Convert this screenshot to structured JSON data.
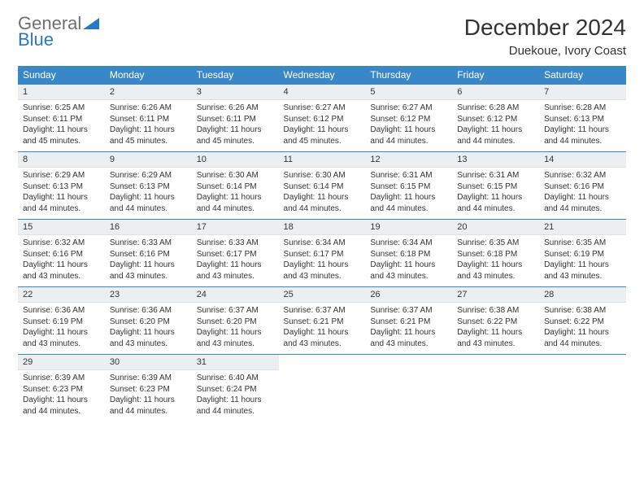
{
  "logo": {
    "word1": "General",
    "word2": "Blue"
  },
  "title": "December 2024",
  "subtitle": "Duekoue, Ivory Coast",
  "colors": {
    "header_bg": "#3a87c8",
    "header_text": "#ffffff",
    "daynum_bg": "#eceff1",
    "border": "#3a87c8",
    "logo_gray": "#6f6f6f",
    "logo_blue": "#2a78c2",
    "page_bg": "#ffffff"
  },
  "typography": {
    "title_fontsize": 28,
    "subtitle_fontsize": 15,
    "weekday_fontsize": 12,
    "daynum_fontsize": 11,
    "body_fontsize": 10
  },
  "weekdays": [
    "Sunday",
    "Monday",
    "Tuesday",
    "Wednesday",
    "Thursday",
    "Friday",
    "Saturday"
  ],
  "days": [
    {
      "n": 1,
      "sunrise": "6:25 AM",
      "sunset": "6:11 PM",
      "daylight": "11 hours and 45 minutes."
    },
    {
      "n": 2,
      "sunrise": "6:26 AM",
      "sunset": "6:11 PM",
      "daylight": "11 hours and 45 minutes."
    },
    {
      "n": 3,
      "sunrise": "6:26 AM",
      "sunset": "6:11 PM",
      "daylight": "11 hours and 45 minutes."
    },
    {
      "n": 4,
      "sunrise": "6:27 AM",
      "sunset": "6:12 PM",
      "daylight": "11 hours and 45 minutes."
    },
    {
      "n": 5,
      "sunrise": "6:27 AM",
      "sunset": "6:12 PM",
      "daylight": "11 hours and 44 minutes."
    },
    {
      "n": 6,
      "sunrise": "6:28 AM",
      "sunset": "6:12 PM",
      "daylight": "11 hours and 44 minutes."
    },
    {
      "n": 7,
      "sunrise": "6:28 AM",
      "sunset": "6:13 PM",
      "daylight": "11 hours and 44 minutes."
    },
    {
      "n": 8,
      "sunrise": "6:29 AM",
      "sunset": "6:13 PM",
      "daylight": "11 hours and 44 minutes."
    },
    {
      "n": 9,
      "sunrise": "6:29 AM",
      "sunset": "6:13 PM",
      "daylight": "11 hours and 44 minutes."
    },
    {
      "n": 10,
      "sunrise": "6:30 AM",
      "sunset": "6:14 PM",
      "daylight": "11 hours and 44 minutes."
    },
    {
      "n": 11,
      "sunrise": "6:30 AM",
      "sunset": "6:14 PM",
      "daylight": "11 hours and 44 minutes."
    },
    {
      "n": 12,
      "sunrise": "6:31 AM",
      "sunset": "6:15 PM",
      "daylight": "11 hours and 44 minutes."
    },
    {
      "n": 13,
      "sunrise": "6:31 AM",
      "sunset": "6:15 PM",
      "daylight": "11 hours and 44 minutes."
    },
    {
      "n": 14,
      "sunrise": "6:32 AM",
      "sunset": "6:16 PM",
      "daylight": "11 hours and 44 minutes."
    },
    {
      "n": 15,
      "sunrise": "6:32 AM",
      "sunset": "6:16 PM",
      "daylight": "11 hours and 43 minutes."
    },
    {
      "n": 16,
      "sunrise": "6:33 AM",
      "sunset": "6:16 PM",
      "daylight": "11 hours and 43 minutes."
    },
    {
      "n": 17,
      "sunrise": "6:33 AM",
      "sunset": "6:17 PM",
      "daylight": "11 hours and 43 minutes."
    },
    {
      "n": 18,
      "sunrise": "6:34 AM",
      "sunset": "6:17 PM",
      "daylight": "11 hours and 43 minutes."
    },
    {
      "n": 19,
      "sunrise": "6:34 AM",
      "sunset": "6:18 PM",
      "daylight": "11 hours and 43 minutes."
    },
    {
      "n": 20,
      "sunrise": "6:35 AM",
      "sunset": "6:18 PM",
      "daylight": "11 hours and 43 minutes."
    },
    {
      "n": 21,
      "sunrise": "6:35 AM",
      "sunset": "6:19 PM",
      "daylight": "11 hours and 43 minutes."
    },
    {
      "n": 22,
      "sunrise": "6:36 AM",
      "sunset": "6:19 PM",
      "daylight": "11 hours and 43 minutes."
    },
    {
      "n": 23,
      "sunrise": "6:36 AM",
      "sunset": "6:20 PM",
      "daylight": "11 hours and 43 minutes."
    },
    {
      "n": 24,
      "sunrise": "6:37 AM",
      "sunset": "6:20 PM",
      "daylight": "11 hours and 43 minutes."
    },
    {
      "n": 25,
      "sunrise": "6:37 AM",
      "sunset": "6:21 PM",
      "daylight": "11 hours and 43 minutes."
    },
    {
      "n": 26,
      "sunrise": "6:37 AM",
      "sunset": "6:21 PM",
      "daylight": "11 hours and 43 minutes."
    },
    {
      "n": 27,
      "sunrise": "6:38 AM",
      "sunset": "6:22 PM",
      "daylight": "11 hours and 43 minutes."
    },
    {
      "n": 28,
      "sunrise": "6:38 AM",
      "sunset": "6:22 PM",
      "daylight": "11 hours and 44 minutes."
    },
    {
      "n": 29,
      "sunrise": "6:39 AM",
      "sunset": "6:23 PM",
      "daylight": "11 hours and 44 minutes."
    },
    {
      "n": 30,
      "sunrise": "6:39 AM",
      "sunset": "6:23 PM",
      "daylight": "11 hours and 44 minutes."
    },
    {
      "n": 31,
      "sunrise": "6:40 AM",
      "sunset": "6:24 PM",
      "daylight": "11 hours and 44 minutes."
    }
  ],
  "labels": {
    "sunrise_prefix": "Sunrise: ",
    "sunset_prefix": "Sunset: ",
    "daylight_prefix": "Daylight: "
  },
  "layout": {
    "first_weekday_index": 0,
    "columns": 7,
    "rows": 5
  }
}
